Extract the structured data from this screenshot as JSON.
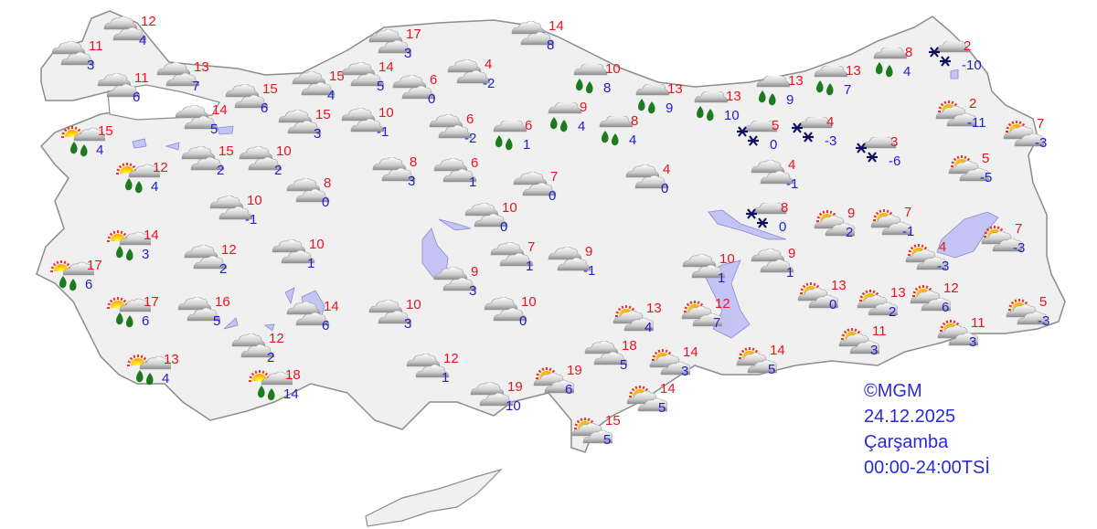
{
  "credit": {
    "copyright": "©MGM",
    "date": "24.12.2025",
    "day": "Çarşamba",
    "period": "00:00-24:00TSİ"
  },
  "colors": {
    "max_temp": "#e8141e",
    "min_temp": "#1e1ed2",
    "land": "#f0f0f0",
    "border": "#9a9a9a",
    "water": "#c4c4f4",
    "rain": "#1e7a1e",
    "snow": "#101060"
  },
  "legend_types": {
    "cloudy": "cloudy-icon",
    "rain": "rain-icon",
    "sun_rain": "partly-cloudy-rain-icon",
    "snow": "snow-icon",
    "partly": "partly-cloudy-icon"
  },
  "stations": [
    {
      "type": "cloudy",
      "max": "12",
      "min": "4"
    },
    {
      "type": "cloudy",
      "max": "11",
      "min": "3"
    },
    {
      "type": "cloudy",
      "max": "11",
      "min": "6"
    },
    {
      "type": "cloudy",
      "max": "13",
      "min": "7"
    },
    {
      "type": "cloudy",
      "max": "15",
      "min": "6"
    },
    {
      "type": "cloudy",
      "max": "14",
      "min": "5"
    },
    {
      "type": "sun_rain",
      "max": "15",
      "min": "4"
    },
    {
      "type": "sun_rain",
      "max": "12",
      "min": "4"
    },
    {
      "type": "cloudy",
      "max": "15",
      "min": "2"
    },
    {
      "type": "cloudy",
      "max": "10",
      "min": "2"
    },
    {
      "type": "cloudy",
      "max": "15",
      "min": "4"
    },
    {
      "type": "cloudy",
      "max": "14",
      "min": "5"
    },
    {
      "type": "cloudy",
      "max": "17",
      "min": "3"
    },
    {
      "type": "cloudy",
      "max": "15",
      "min": "3"
    },
    {
      "type": "cloudy",
      "max": "10",
      "min": "-1"
    },
    {
      "type": "cloudy",
      "max": "6",
      "min": "0"
    },
    {
      "type": "cloudy",
      "max": "4",
      "min": "-2"
    },
    {
      "type": "cloudy",
      "max": "14",
      "min": "8"
    },
    {
      "type": "rain",
      "max": "10",
      "min": "8"
    },
    {
      "type": "rain",
      "max": "13",
      "min": "9"
    },
    {
      "type": "rain",
      "max": "13",
      "min": "10"
    },
    {
      "type": "rain",
      "max": "13",
      "min": "9"
    },
    {
      "type": "rain",
      "max": "13",
      "min": "7"
    },
    {
      "type": "rain",
      "max": "8",
      "min": "4"
    },
    {
      "type": "snow",
      "max": "2",
      "min": "-10"
    },
    {
      "type": "partly",
      "max": "2",
      "min": "-11"
    },
    {
      "type": "partly",
      "max": "7",
      "min": "-3"
    },
    {
      "type": "partly",
      "max": "5",
      "min": "-5"
    },
    {
      "type": "snow",
      "max": "5",
      "min": "0"
    },
    {
      "type": "snow",
      "max": "4",
      "min": "-3"
    },
    {
      "type": "snow",
      "max": "3",
      "min": "-6"
    },
    {
      "type": "cloudy",
      "max": "4",
      "min": "-1"
    },
    {
      "type": "cloudy",
      "max": "6",
      "min": "-2"
    },
    {
      "type": "rain",
      "max": "6",
      "min": "1"
    },
    {
      "type": "rain",
      "max": "9",
      "min": "4"
    },
    {
      "type": "rain",
      "max": "8",
      "min": "4"
    },
    {
      "type": "cloudy",
      "max": "8",
      "min": "3"
    },
    {
      "type": "cloudy",
      "max": "6",
      "min": "1"
    },
    {
      "type": "cloudy",
      "max": "7",
      "min": "0"
    },
    {
      "type": "cloudy",
      "max": "4",
      "min": "0"
    },
    {
      "type": "cloudy",
      "max": "8",
      "min": "0"
    },
    {
      "type": "cloudy",
      "max": "10",
      "min": "-1"
    },
    {
      "type": "sun_rain",
      "max": "14",
      "min": "3"
    },
    {
      "type": "cloudy",
      "max": "12",
      "min": "2"
    },
    {
      "type": "cloudy",
      "max": "10",
      "min": "1"
    },
    {
      "type": "sun_rain",
      "max": "17",
      "min": "6"
    },
    {
      "type": "sun_rain",
      "max": "17",
      "min": "6"
    },
    {
      "type": "cloudy",
      "max": "16",
      "min": "5"
    },
    {
      "type": "cloudy",
      "max": "14",
      "min": "6"
    },
    {
      "type": "cloudy",
      "max": "12",
      "min": "2"
    },
    {
      "type": "sun_rain",
      "max": "13",
      "min": "4"
    },
    {
      "type": "sun_rain",
      "max": "18",
      "min": "14"
    },
    {
      "type": "cloudy",
      "max": "10",
      "min": "3"
    },
    {
      "type": "cloudy",
      "max": "12",
      "min": "1"
    },
    {
      "type": "cloudy",
      "max": "10",
      "min": "0"
    },
    {
      "type": "cloudy",
      "max": "7",
      "min": "1"
    },
    {
      "type": "cloudy",
      "max": "9",
      "min": "3"
    },
    {
      "type": "cloudy",
      "max": "9",
      "min": "-1"
    },
    {
      "type": "cloudy",
      "max": "10",
      "min": "0"
    },
    {
      "type": "cloudy",
      "max": "19",
      "min": "10"
    },
    {
      "type": "partly",
      "max": "19",
      "min": "6"
    },
    {
      "type": "cloudy",
      "max": "18",
      "min": "5"
    },
    {
      "type": "partly",
      "max": "13",
      "min": "4"
    },
    {
      "type": "partly",
      "max": "12",
      "min": "7"
    },
    {
      "type": "partly",
      "max": "14",
      "min": "3"
    },
    {
      "type": "partly",
      "max": "14",
      "min": "5"
    },
    {
      "type": "partly",
      "max": "15",
      "min": "5"
    },
    {
      "type": "partly",
      "max": "14",
      "min": "5"
    },
    {
      "type": "cloudy",
      "max": "10",
      "min": "1"
    },
    {
      "type": "snow",
      "max": "8",
      "min": "0"
    },
    {
      "type": "cloudy",
      "max": "9",
      "min": "1"
    },
    {
      "type": "partly",
      "max": "9",
      "min": "2"
    },
    {
      "type": "partly",
      "max": "7",
      "min": "-1"
    },
    {
      "type": "partly",
      "max": "4",
      "min": "-3"
    },
    {
      "type": "partly",
      "max": "7",
      "min": "-3"
    },
    {
      "type": "partly",
      "max": "13",
      "min": "0"
    },
    {
      "type": "partly",
      "max": "13",
      "min": "2"
    },
    {
      "type": "partly",
      "max": "12",
      "min": "6"
    },
    {
      "type": "partly",
      "max": "11",
      "min": "3"
    },
    {
      "type": "partly",
      "max": "11",
      "min": "3"
    },
    {
      "type": "partly",
      "max": "5",
      "min": "-3"
    }
  ]
}
